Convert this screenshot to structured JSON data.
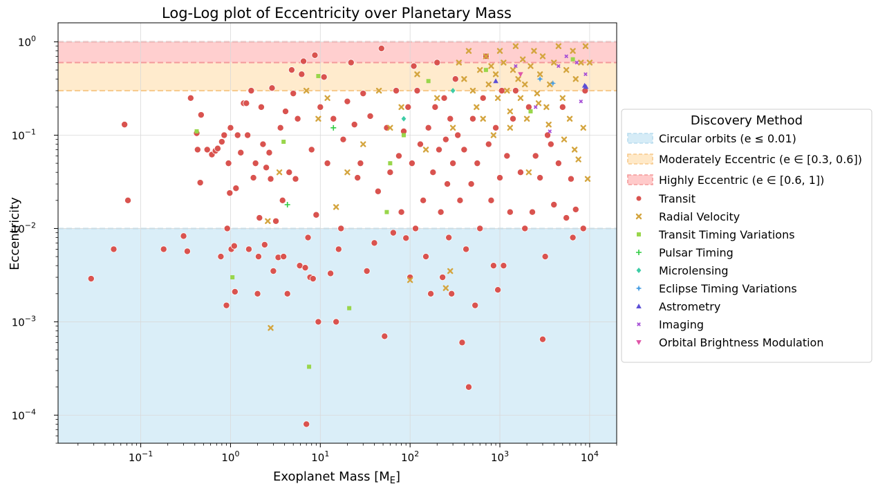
{
  "chart_data": {
    "type": "scatter",
    "title": "Log-Log plot of Eccentricity over Planetary Mass",
    "xlabel": "Exoplanet Mass [M",
    "xlabel_sub": "E",
    "xlabel_end": "]",
    "ylabel": "Eccentricity",
    "xscale": "log",
    "yscale": "log",
    "xlim": [
      0.012,
      20000
    ],
    "ylim": [
      5e-05,
      1.6
    ],
    "grid": true,
    "x_ticks": [
      {
        "value": 0.1,
        "mant": "10",
        "exp": "−1"
      },
      {
        "value": 1,
        "mant": "10",
        "exp": "0"
      },
      {
        "value": 10,
        "mant": "10",
        "exp": "1"
      },
      {
        "value": 100,
        "mant": "10",
        "exp": "2"
      },
      {
        "value": 1000,
        "mant": "10",
        "exp": "3"
      },
      {
        "value": 10000,
        "mant": "10",
        "exp": "4"
      }
    ],
    "y_ticks": [
      {
        "value": 0.0001,
        "mant": "10",
        "exp": "−4"
      },
      {
        "value": 0.001,
        "mant": "10",
        "exp": "−3"
      },
      {
        "value": 0.01,
        "mant": "10",
        "exp": "−2"
      },
      {
        "value": 0.1,
        "mant": "10",
        "exp": "−1"
      },
      {
        "value": 1,
        "mant": "10",
        "exp": "0"
      }
    ],
    "bands": [
      {
        "name": "Circular orbits (e ≤ 0.01)",
        "y0": 5e-05,
        "y1": 0.01,
        "fill": "#d6ecf7",
        "edge": "#b8dcee"
      },
      {
        "name": "Moderately Eccentric (e ∈ [0.3, 0.6])",
        "y0": 0.3,
        "y1": 0.6,
        "fill": "#ffe9c8",
        "edge": "#f7c98a"
      },
      {
        "name": "Highly Eccentric (e ∈ [0.6, 1])",
        "y0": 0.6,
        "y1": 1.0,
        "fill": "#ffcaca",
        "edge": "#f49a9a"
      }
    ],
    "legend": {
      "title": "Discovery Method",
      "placement": "right, outside plot"
    },
    "series": [
      {
        "name": "Transit",
        "marker": "circle",
        "color": "#d9534f",
        "points": [
          [
            0.028,
            0.0029
          ],
          [
            0.05,
            0.006
          ],
          [
            0.066,
            0.13
          ],
          [
            0.072,
            0.02
          ],
          [
            0.18,
            0.006
          ],
          [
            0.3,
            0.0083
          ],
          [
            0.33,
            0.0057
          ],
          [
            0.36,
            0.25
          ],
          [
            0.42,
            0.105
          ],
          [
            0.43,
            0.07
          ],
          [
            0.46,
            0.031
          ],
          [
            0.47,
            0.165
          ],
          [
            0.55,
            0.07
          ],
          [
            0.62,
            0.062
          ],
          [
            0.68,
            0.068
          ],
          [
            0.72,
            0.072
          ],
          [
            0.78,
            0.005
          ],
          [
            0.8,
            0.085
          ],
          [
            0.85,
            0.1
          ],
          [
            0.9,
            0.0015
          ],
          [
            0.92,
            0.01
          ],
          [
            0.95,
            0.05
          ],
          [
            0.98,
            0.024
          ],
          [
            1.0,
            0.12
          ],
          [
            1.02,
            0.006
          ],
          [
            1.1,
            0.0065
          ],
          [
            1.12,
            0.0021
          ],
          [
            1.15,
            0.027
          ],
          [
            1.2,
            0.1
          ],
          [
            1.3,
            0.065
          ],
          [
            1.4,
            0.22
          ],
          [
            1.5,
            0.22
          ],
          [
            1.55,
            0.1
          ],
          [
            1.6,
            0.006
          ],
          [
            1.7,
            0.3
          ],
          [
            1.8,
            0.035
          ],
          [
            1.9,
            0.05
          ],
          [
            2.0,
            0.002
          ],
          [
            2.05,
            0.005
          ],
          [
            2.1,
            0.013
          ],
          [
            2.2,
            0.2
          ],
          [
            2.3,
            0.08
          ],
          [
            2.4,
            0.0067
          ],
          [
            2.5,
            0.045
          ],
          [
            2.7,
            0.065
          ],
          [
            2.8,
            0.034
          ],
          [
            2.9,
            0.32
          ],
          [
            3.0,
            0.0035
          ],
          [
            3.2,
            0.012
          ],
          [
            3.4,
            0.0049
          ],
          [
            3.6,
            0.12
          ],
          [
            3.8,
            0.02
          ],
          [
            3.9,
            0.005
          ],
          [
            4.1,
            0.18
          ],
          [
            4.3,
            0.002
          ],
          [
            4.5,
            0.04
          ],
          [
            4.8,
            0.5
          ],
          [
            5.0,
            0.28
          ],
          [
            5.3,
            0.034
          ],
          [
            5.6,
            0.15
          ],
          [
            5.9,
            0.004
          ],
          [
            6.2,
            0.45
          ],
          [
            6.5,
            0.62
          ],
          [
            6.8,
            0.0038
          ],
          [
            7.0,
            8e-05
          ],
          [
            7.3,
            0.008
          ],
          [
            7.7,
            0.003
          ],
          [
            8.0,
            0.07
          ],
          [
            8.3,
            0.0029
          ],
          [
            8.7,
            0.72
          ],
          [
            9.0,
            0.014
          ],
          [
            9.5,
            0.001
          ],
          [
            10,
            0.2
          ],
          [
            11,
            0.42
          ],
          [
            12,
            0.05
          ],
          [
            13,
            0.0033
          ],
          [
            14,
            0.15
          ],
          [
            15,
            0.001
          ],
          [
            16,
            0.006
          ],
          [
            17,
            0.01
          ],
          [
            18,
            0.09
          ],
          [
            20,
            0.23
          ],
          [
            22,
            0.6
          ],
          [
            24,
            0.13
          ],
          [
            26,
            0.035
          ],
          [
            28,
            0.05
          ],
          [
            30,
            0.28
          ],
          [
            33,
            0.0035
          ],
          [
            36,
            0.16
          ],
          [
            40,
            0.007
          ],
          [
            44,
            0.025
          ],
          [
            48,
            0.85
          ],
          [
            52,
            0.0007
          ],
          [
            55,
            0.12
          ],
          [
            60,
            0.04
          ],
          [
            65,
            0.009
          ],
          [
            70,
            0.3
          ],
          [
            75,
            0.06
          ],
          [
            80,
            0.015
          ],
          [
            85,
            0.11
          ],
          [
            90,
            0.0079
          ],
          [
            95,
            0.2
          ],
          [
            100,
            0.003
          ],
          [
            105,
            0.05
          ],
          [
            110,
            0.55
          ],
          [
            115,
            0.01
          ],
          [
            120,
            0.3
          ],
          [
            130,
            0.08
          ],
          [
            140,
            0.02
          ],
          [
            150,
            0.005
          ],
          [
            160,
            0.12
          ],
          [
            170,
            0.002
          ],
          [
            180,
            0.04
          ],
          [
            190,
            0.2
          ],
          [
            200,
            0.6
          ],
          [
            210,
            0.07
          ],
          [
            220,
            0.015
          ],
          [
            230,
            0.003
          ],
          [
            240,
            0.25
          ],
          [
            250,
            0.09
          ],
          [
            260,
            0.03
          ],
          [
            270,
            0.008
          ],
          [
            280,
            0.15
          ],
          [
            290,
            0.002
          ],
          [
            300,
            0.05
          ],
          [
            320,
            0.4
          ],
          [
            340,
            0.1
          ],
          [
            360,
            0.02
          ],
          [
            380,
            0.0006
          ],
          [
            400,
            0.07
          ],
          [
            420,
            0.006
          ],
          [
            450,
            0.0002
          ],
          [
            480,
            0.03
          ],
          [
            500,
            0.15
          ],
          [
            530,
            0.0015
          ],
          [
            560,
            0.05
          ],
          [
            600,
            0.01
          ],
          [
            650,
            0.25
          ],
          [
            700,
            0.7
          ],
          [
            750,
            0.08
          ],
          [
            800,
            0.02
          ],
          [
            850,
            0.004
          ],
          [
            900,
            0.12
          ],
          [
            950,
            0.0022
          ],
          [
            1000,
            0.035
          ],
          [
            1050,
            0.3
          ],
          [
            1100,
            0.004
          ],
          [
            1200,
            0.06
          ],
          [
            1300,
            0.015
          ],
          [
            1400,
            0.15
          ],
          [
            1500,
            0.3
          ],
          [
            1700,
            0.04
          ],
          [
            1900,
            0.01
          ],
          [
            2100,
            0.2
          ],
          [
            2300,
            0.015
          ],
          [
            2500,
            0.06
          ],
          [
            2800,
            0.035
          ],
          [
            3000,
            0.00065
          ],
          [
            3200,
            0.005
          ],
          [
            3400,
            0.1
          ],
          [
            3700,
            0.08
          ],
          [
            4000,
            0.018
          ],
          [
            4500,
            0.05
          ],
          [
            5000,
            0.2
          ],
          [
            5500,
            0.013
          ],
          [
            6200,
            0.034
          ],
          [
            6500,
            0.008
          ],
          [
            7000,
            0.016
          ],
          [
            8500,
            0.01
          ],
          [
            8900,
            0.3
          ]
        ]
      },
      {
        "name": "Radial Velocity",
        "marker": "x",
        "color": "#d4a53f",
        "points": [
          [
            2.6,
            0.012
          ],
          [
            2.8,
            0.00086
          ],
          [
            3.5,
            0.04
          ],
          [
            7.0,
            0.3
          ],
          [
            9.5,
            0.15
          ],
          [
            12,
            0.25
          ],
          [
            15,
            0.017
          ],
          [
            20,
            0.04
          ],
          [
            30,
            0.08
          ],
          [
            45,
            0.3
          ],
          [
            60,
            0.12
          ],
          [
            80,
            0.2
          ],
          [
            100,
            0.0028
          ],
          [
            120,
            0.45
          ],
          [
            150,
            0.07
          ],
          [
            200,
            0.25
          ],
          [
            250,
            0.0023
          ],
          [
            280,
            0.0035
          ],
          [
            300,
            0.12
          ],
          [
            350,
            0.6
          ],
          [
            400,
            0.4
          ],
          [
            450,
            0.8
          ],
          [
            500,
            0.3
          ],
          [
            550,
            0.2
          ],
          [
            600,
            0.5
          ],
          [
            650,
            0.15
          ],
          [
            700,
            0.7
          ],
          [
            750,
            0.35
          ],
          [
            800,
            0.55
          ],
          [
            850,
            0.1
          ],
          [
            900,
            0.45
          ],
          [
            950,
            0.25
          ],
          [
            1000,
            0.8
          ],
          [
            1100,
            0.6
          ],
          [
            1200,
            0.3
          ],
          [
            1300,
            0.18
          ],
          [
            1400,
            0.5
          ],
          [
            1500,
            0.9
          ],
          [
            1600,
            0.4
          ],
          [
            1700,
            0.25
          ],
          [
            1800,
            0.65
          ],
          [
            1900,
            0.35
          ],
          [
            2000,
            0.15
          ],
          [
            2200,
            0.55
          ],
          [
            2400,
            0.8
          ],
          [
            2600,
            0.28
          ],
          [
            2800,
            0.45
          ],
          [
            3000,
            0.7
          ],
          [
            3300,
            0.2
          ],
          [
            3600,
            0.35
          ],
          [
            4000,
            0.6
          ],
          [
            4500,
            0.9
          ],
          [
            5000,
            0.25
          ],
          [
            5500,
            0.5
          ],
          [
            6000,
            0.15
          ],
          [
            6500,
            0.8
          ],
          [
            7000,
            0.4
          ],
          [
            7500,
            0.055
          ],
          [
            8000,
            0.6
          ],
          [
            8500,
            0.12
          ],
          [
            9000,
            0.9
          ],
          [
            9500,
            0.034
          ],
          [
            10000,
            0.6
          ],
          [
            1300,
            0.12
          ],
          [
            2100,
            0.04
          ],
          [
            2700,
            0.22
          ],
          [
            3500,
            0.13
          ],
          [
            5200,
            0.09
          ],
          [
            6800,
            0.07
          ]
        ]
      },
      {
        "name": "Transit Timing Variations",
        "marker": "square",
        "color": "#99d64b",
        "points": [
          [
            0.42,
            0.11
          ],
          [
            1.05,
            0.003
          ],
          [
            3.9,
            0.085
          ],
          [
            7.5,
            0.00033
          ],
          [
            9.5,
            0.43
          ],
          [
            21,
            0.0014
          ],
          [
            55,
            0.015
          ],
          [
            60,
            0.05
          ],
          [
            85,
            0.1
          ],
          [
            160,
            0.38
          ],
          [
            700,
            0.5
          ],
          [
            2200,
            0.18
          ],
          [
            6500,
            0.65
          ]
        ]
      },
      {
        "name": "Pulsar Timing",
        "marker": "plus",
        "color": "#2ecc40",
        "points": [
          [
            4.3,
            0.018
          ],
          [
            14,
            0.12
          ]
        ]
      },
      {
        "name": "Microlensing",
        "marker": "diamond",
        "color": "#3dcca6",
        "points": [
          [
            85,
            0.15
          ],
          [
            300,
            0.3
          ]
        ]
      },
      {
        "name": "Eclipse Timing Variations",
        "marker": "star",
        "color": "#4a9fe3",
        "points": [
          [
            2800,
            0.4
          ],
          [
            3900,
            0.36
          ]
        ]
      },
      {
        "name": "Astrometry",
        "marker": "triangle-up",
        "color": "#5b4fd6",
        "points": [
          [
            900,
            0.38
          ],
          [
            8800,
            0.34
          ],
          [
            9100,
            0.33
          ]
        ]
      },
      {
        "name": "Imaging",
        "marker": "x-small",
        "color": "#a64fd6",
        "points": [
          [
            1500,
            0.55
          ],
          [
            2500,
            0.2
          ],
          [
            3600,
            0.11
          ],
          [
            4500,
            0.55
          ],
          [
            5500,
            0.7
          ],
          [
            7200,
            0.6
          ],
          [
            8000,
            0.23
          ],
          [
            9000,
            0.45
          ]
        ]
      },
      {
        "name": "Orbital Brightness Modulation",
        "marker": "triangle-down",
        "color": "#e056a8",
        "points": [
          [
            1700,
            0.45
          ]
        ]
      }
    ]
  }
}
